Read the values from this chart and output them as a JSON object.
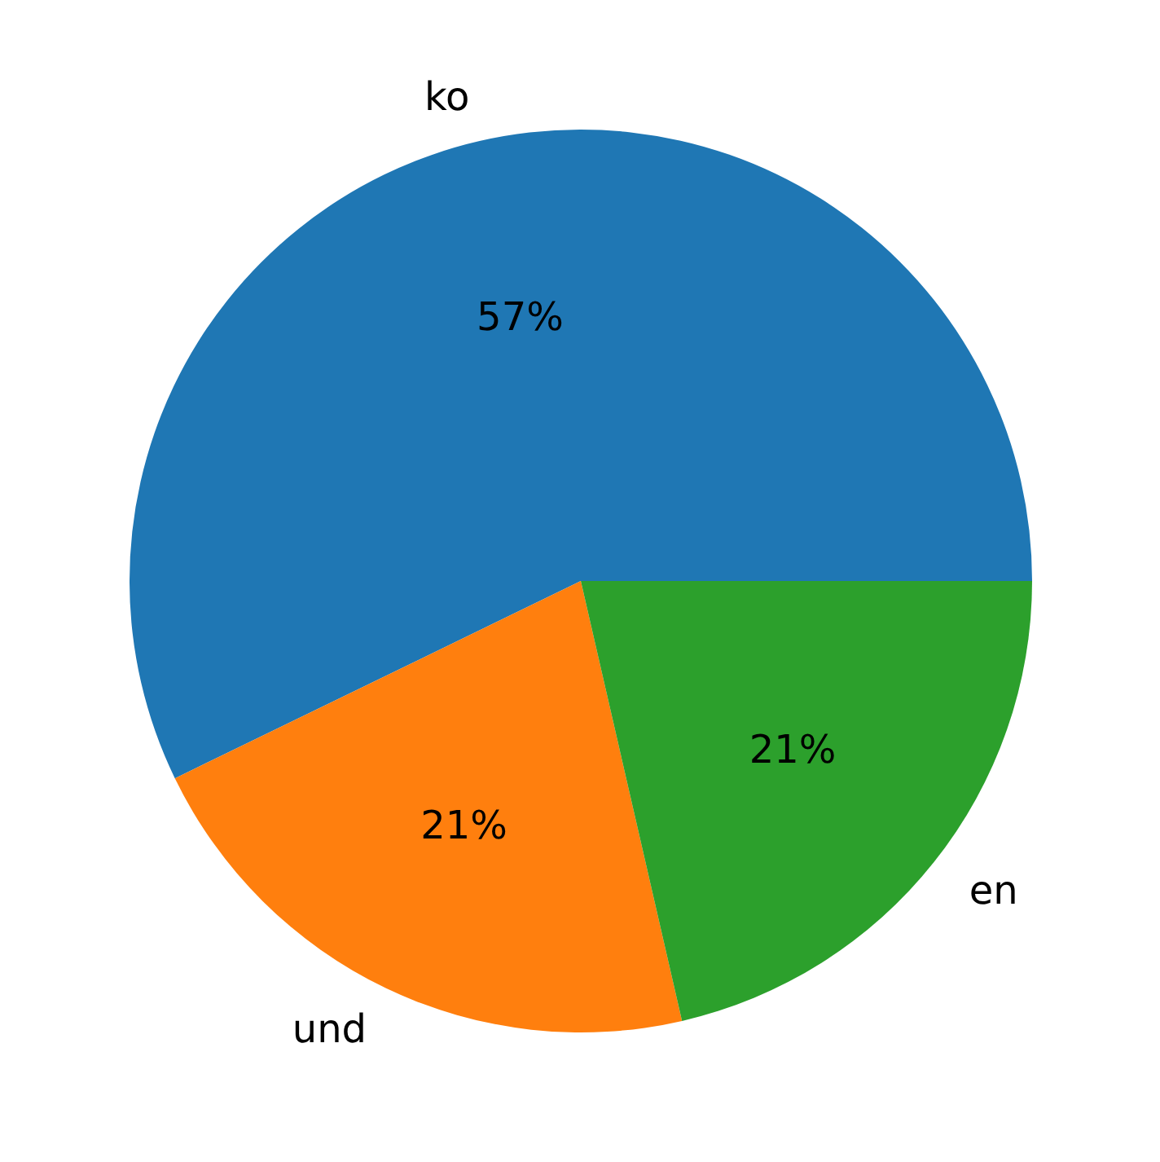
{
  "chart_data": {
    "type": "pie",
    "categories": [
      "ko",
      "und",
      "en"
    ],
    "values": [
      57.2,
      21.4,
      21.4
    ],
    "colors": [
      "#1f77b4",
      "#ff7f0e",
      "#2ca02c"
    ],
    "value_labels": [
      "57%",
      "21%",
      "21%"
    ]
  }
}
